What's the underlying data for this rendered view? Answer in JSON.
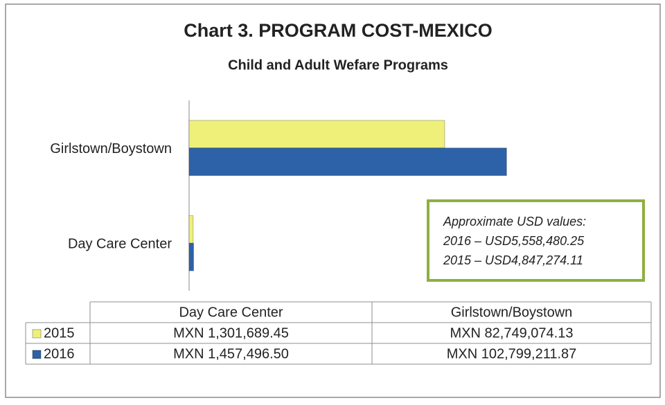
{
  "chart_data": {
    "type": "bar",
    "orientation": "horizontal",
    "title": "Chart 3. PROGRAM COST-MEXICO",
    "subtitle": "Child and Adult Wefare Programs",
    "categories": [
      "Day Care Center",
      "Girlstown/Boystown"
    ],
    "series": [
      {
        "name": "2015",
        "color": "#eef07a",
        "values": [
          1301689.45,
          82749074.13
        ],
        "value_labels": [
          "MXN 1,301,689.45",
          "MXN 82,749,074.13"
        ]
      },
      {
        "name": "2016",
        "color": "#2e62a8",
        "values": [
          1457496.5,
          102799211.87
        ],
        "value_labels": [
          "MXN 1,457,496.50",
          "MXN 102,799,211.87"
        ]
      }
    ],
    "xlim": [
      0,
      120000000
    ],
    "annotation": {
      "lines": [
        "Approximate USD values:",
        "2016 – USD5,558,480.25",
        "2015 – USD4,847,274.11"
      ],
      "border_color": "#8db040"
    }
  }
}
